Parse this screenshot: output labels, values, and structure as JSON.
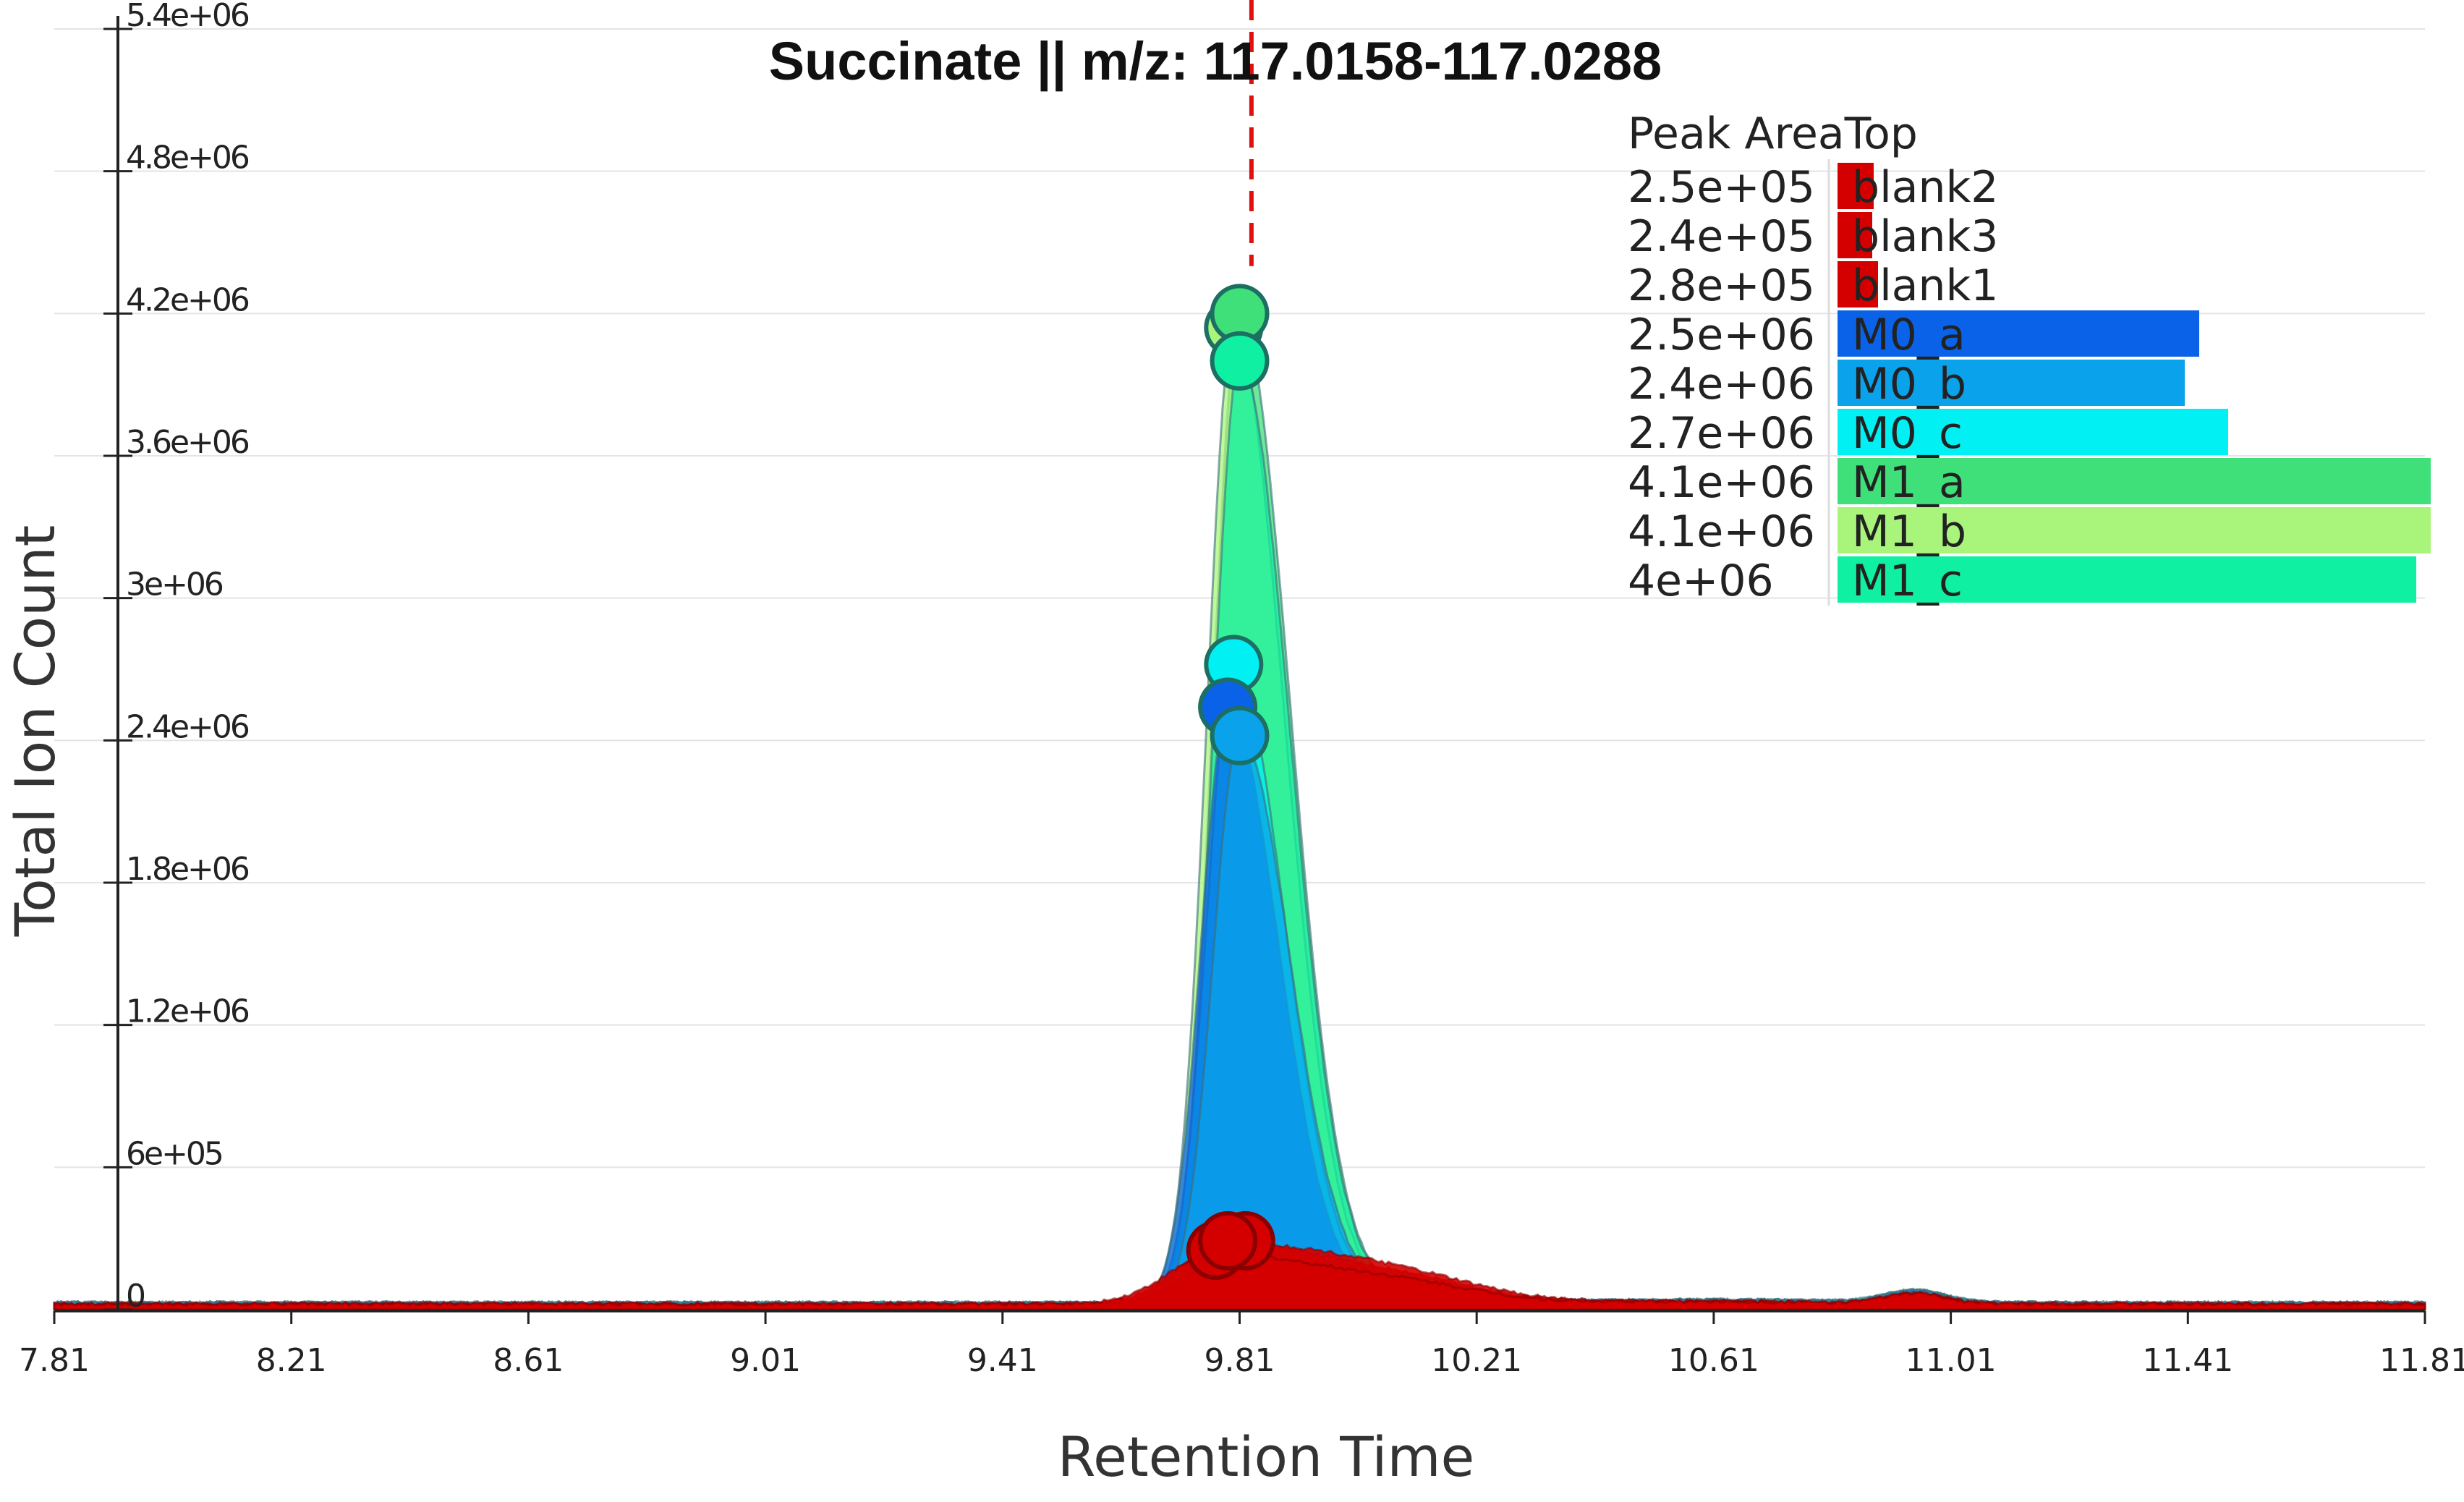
{
  "chart_data": {
    "type": "area",
    "title": "Succinate || m/z: 117.0158-117.0288",
    "xlabel": "Retention Time",
    "ylabel": "Total Ion Count",
    "xlim": [
      7.81,
      11.81
    ],
    "ylim": [
      0,
      5400000
    ],
    "x_ticks": [
      "7.81",
      "8.21",
      "8.61",
      "9.01",
      "9.41",
      "9.81",
      "10.21",
      "10.61",
      "11.01",
      "11.41",
      "11.81"
    ],
    "y_ticks": [
      {
        "value": 0,
        "label": "0"
      },
      {
        "value": 600000,
        "label": "6e+05"
      },
      {
        "value": 1200000,
        "label": "1.2e+06"
      },
      {
        "value": 1800000,
        "label": "1.8e+06"
      },
      {
        "value": 2400000,
        "label": "2.4e+06"
      },
      {
        "value": 3000000,
        "label": "3e+06"
      },
      {
        "value": 3600000,
        "label": "3.6e+06"
      },
      {
        "value": 4200000,
        "label": "4.2e+06"
      },
      {
        "value": 4800000,
        "label": "4.8e+06"
      },
      {
        "value": 5400000,
        "label": "5.4e+06"
      }
    ],
    "grid": "horizontal",
    "marker_rt": 9.83,
    "legend": {
      "title": "Peak AreaTop",
      "placement": "top-right",
      "max_area": 4100000
    },
    "series": [
      {
        "name": "blank2",
        "color": "#d40000",
        "apex_rt": 9.82,
        "apex": 290000,
        "area": 250000,
        "area_label": "2.5e+05"
      },
      {
        "name": "blank3",
        "color": "#d40000",
        "apex_rt": 9.77,
        "apex": 250000,
        "area": 240000,
        "area_label": "2.4e+05"
      },
      {
        "name": "blank1",
        "color": "#d40000",
        "apex_rt": 9.79,
        "apex": 290000,
        "area": 280000,
        "area_label": "2.8e+05"
      },
      {
        "name": "M0_a",
        "color": "#0a62e8",
        "apex_rt": 9.79,
        "apex": 2540000,
        "area": 2500000,
        "area_label": "2.5e+06"
      },
      {
        "name": "M0_b",
        "color": "#0aa2ea",
        "apex_rt": 9.81,
        "apex": 2420000,
        "area": 2400000,
        "area_label": "2.4e+06"
      },
      {
        "name": "M0_c",
        "color": "#00f0f4",
        "apex_rt": 9.8,
        "apex": 2720000,
        "area": 2700000,
        "area_label": "2.7e+06"
      },
      {
        "name": "M1_a",
        "color": "#3fe07a",
        "apex_rt": 9.81,
        "apex": 4200000,
        "area": 4100000,
        "area_label": "4.1e+06"
      },
      {
        "name": "M1_b",
        "color": "#a9f57c",
        "apex_rt": 9.8,
        "apex": 4140000,
        "area": 4100000,
        "area_label": "4.1e+06"
      },
      {
        "name": "M1_c",
        "color": "#10f0a2",
        "apex_rt": 9.81,
        "apex": 4000000,
        "area": 4000000,
        "area_label": "4e+06"
      }
    ]
  }
}
